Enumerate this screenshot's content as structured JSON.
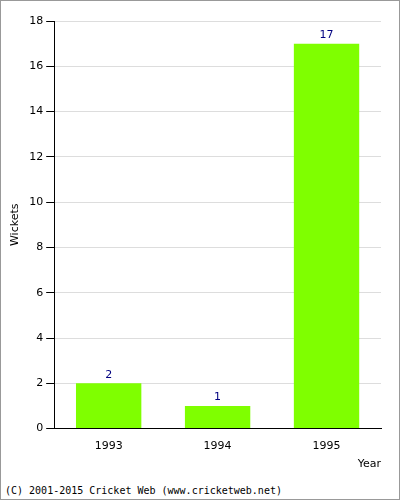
{
  "chart_data": {
    "type": "bar",
    "categories": [
      "1993",
      "1994",
      "1995"
    ],
    "values": [
      2,
      1,
      17
    ],
    "color": "#7fff00",
    "x_label": "Year",
    "y_label": "Wickets",
    "ylim": [
      0,
      18
    ],
    "yticks": [
      0,
      2,
      4,
      6,
      8,
      10,
      12,
      14,
      16,
      18
    ],
    "grid": true,
    "data_labels": true,
    "annotations": [
      "(C) 2001-2015 Cricket Web (www.cricketweb.net)"
    ]
  }
}
